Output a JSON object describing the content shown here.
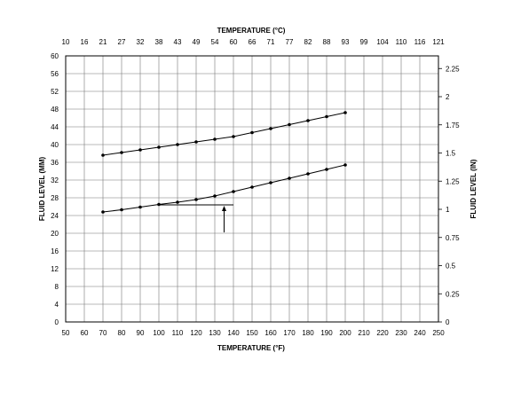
{
  "chart_data": {
    "type": "line",
    "title": "",
    "xlabel": "TEMPERATURE (°F)",
    "x2label": "TEMPERATURE (°C)",
    "ylabel": "FLUID LEVEL (MM)",
    "y2label": "FLUID LEVEL (IN)",
    "xlim": [
      50,
      250
    ],
    "ylim": [
      0,
      60
    ],
    "grid": true,
    "x_ticks": [
      50,
      60,
      70,
      80,
      90,
      100,
      110,
      120,
      130,
      140,
      150,
      160,
      170,
      180,
      190,
      200,
      210,
      220,
      230,
      240,
      250
    ],
    "x2_ticks": [
      "10",
      "16",
      "21",
      "27",
      "32",
      "38",
      "43",
      "49",
      "54",
      "60",
      "66",
      "71",
      "77",
      "82",
      "88",
      "93",
      "99",
      "104",
      "110",
      "116",
      "121"
    ],
    "y_ticks": [
      0,
      4,
      8,
      12,
      16,
      20,
      24,
      28,
      32,
      36,
      40,
      44,
      48,
      52,
      56,
      60
    ],
    "y2_ticks": [
      {
        "label": "0",
        "value_in": 0
      },
      {
        "label": "0.25",
        "value_in": 0.25
      },
      {
        "label": "0.5",
        "value_in": 0.5
      },
      {
        "label": "0.75",
        "value_in": 0.75
      },
      {
        "label": "1",
        "value_in": 1.0
      },
      {
        "label": "1.25",
        "value_in": 1.25
      },
      {
        "label": "1.5",
        "value_in": 1.5
      },
      {
        "label": "1.75",
        "value_in": 1.75
      },
      {
        "label": "2",
        "value_in": 2.0
      },
      {
        "label": "2.25",
        "value_in": 2.25
      }
    ],
    "x": [
      70,
      80,
      90,
      100,
      110,
      120,
      130,
      140,
      150,
      160,
      170,
      180,
      190,
      200
    ],
    "series": [
      {
        "values": [
          37.6,
          38.2,
          38.8,
          39.4,
          40.0,
          40.6,
          41.2,
          41.8,
          42.7,
          43.6,
          44.5,
          45.4,
          46.3,
          47.2
        ]
      },
      {
        "values": [
          24.8,
          25.3,
          25.9,
          26.5,
          27.0,
          27.6,
          28.4,
          29.4,
          30.4,
          31.4,
          32.4,
          33.4,
          34.4,
          35.4
        ]
      }
    ],
    "annotation": {
      "reference_x": 135,
      "reference_y": 26.4,
      "from_x": 100,
      "to_x": 140,
      "arrow_from_y": 20.2
    }
  }
}
